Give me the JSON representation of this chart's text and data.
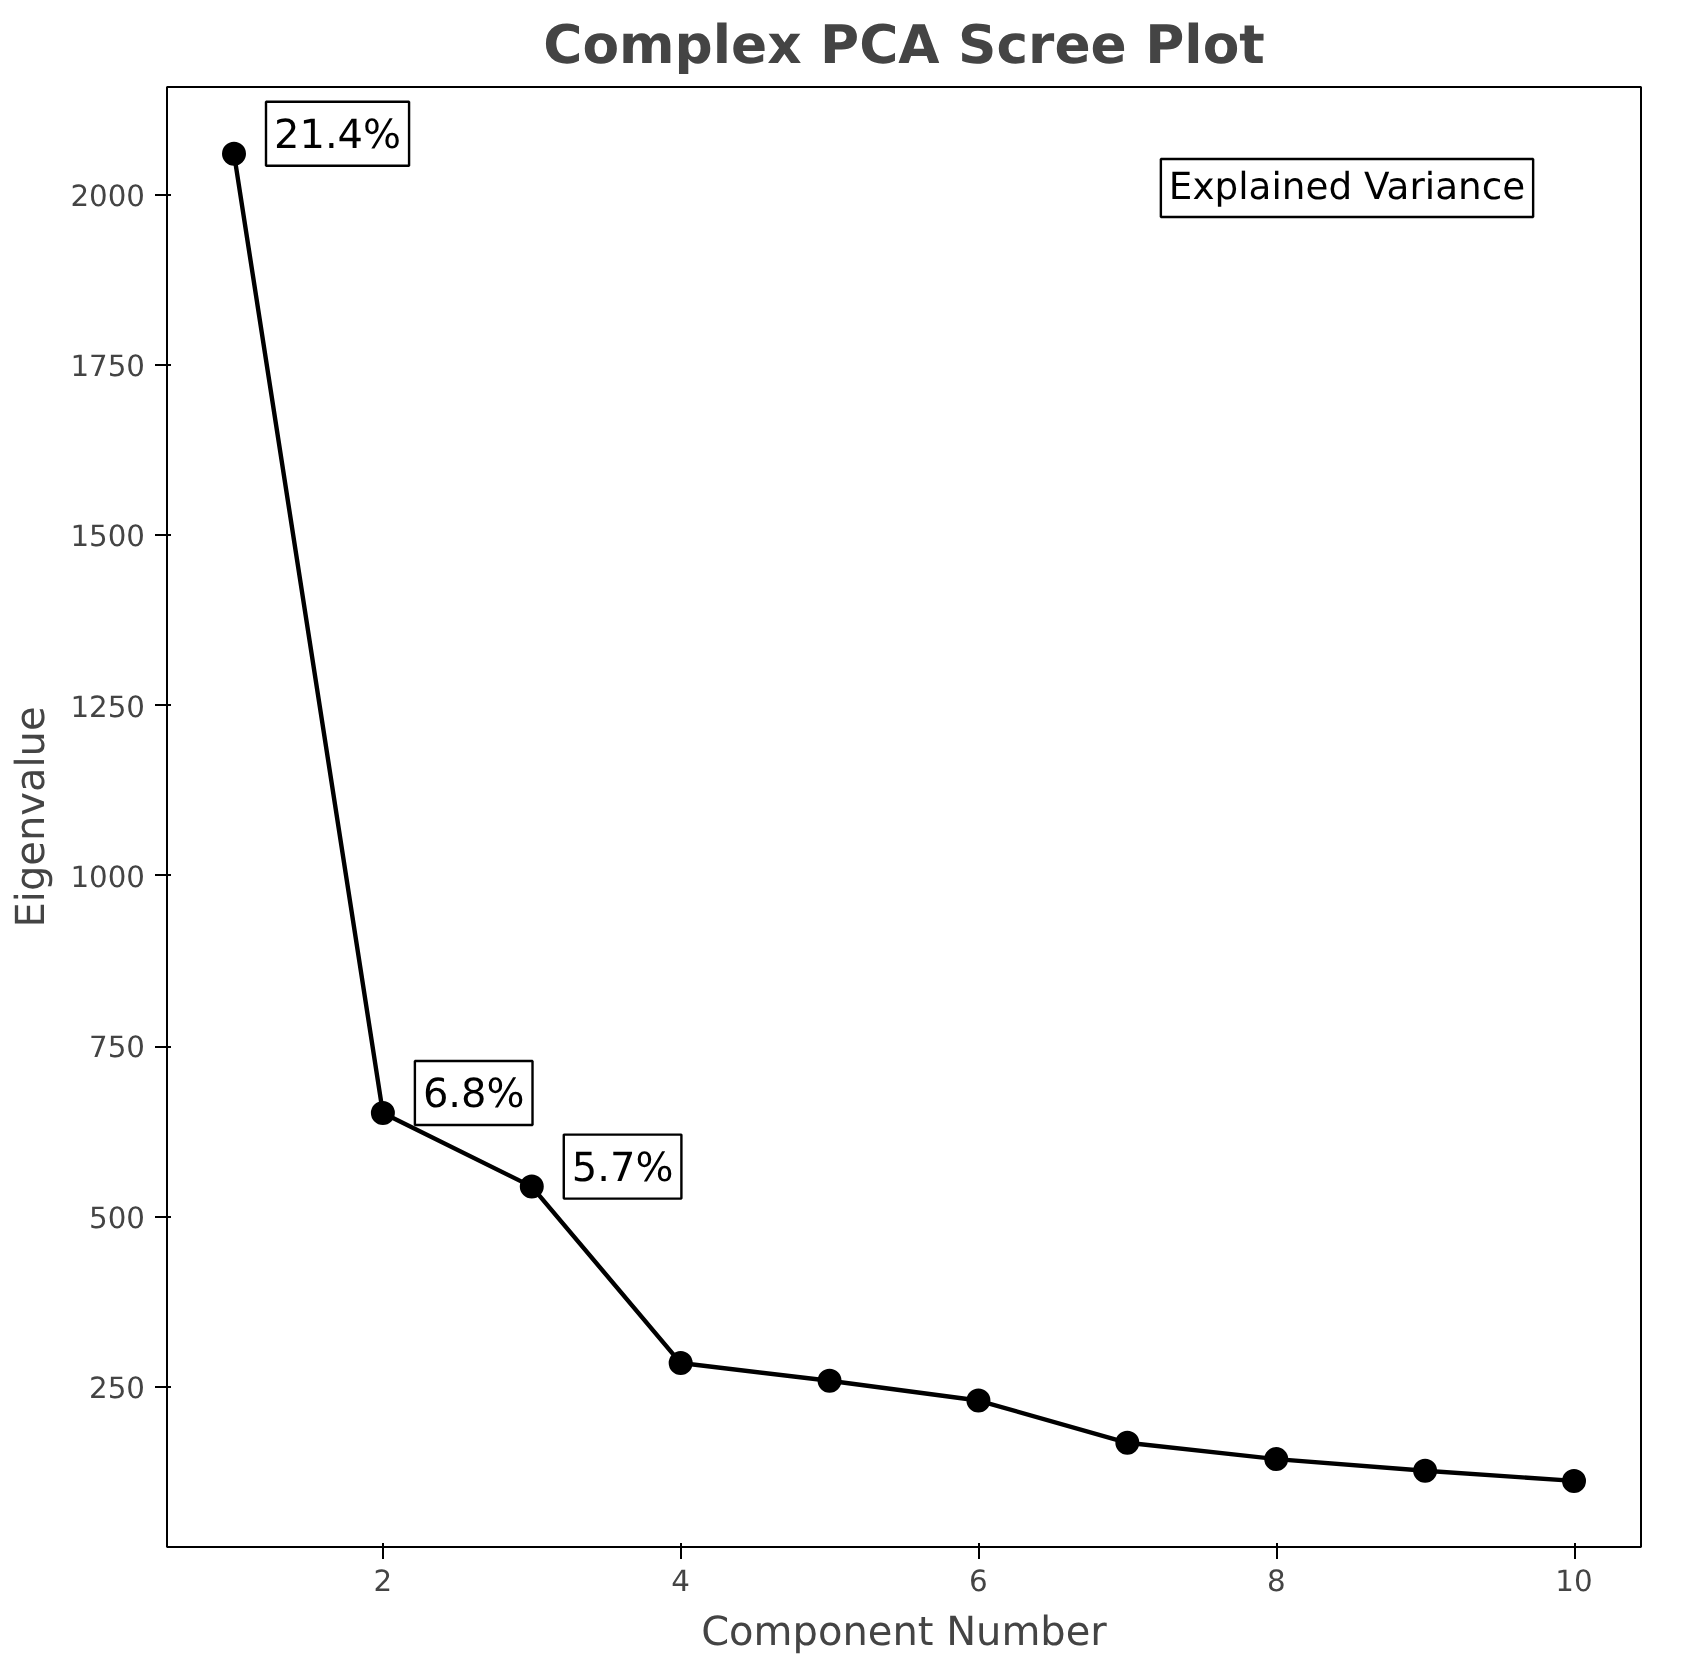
{
  "chart_data": {
    "type": "line",
    "title": "Complex PCA Scree Plot",
    "xlabel": "Component Number",
    "ylabel": "Eigenvalue",
    "x": [
      1,
      2,
      3,
      4,
      5,
      6,
      7,
      8,
      9,
      10
    ],
    "series": [
      {
        "color": "#000000",
        "values": [
          2060,
          652,
          544,
          285,
          259,
          230,
          168,
          144,
          127,
          112
        ]
      }
    ],
    "marker": "circle",
    "line_style": "solid",
    "grid": false,
    "xlim": [
      0.55,
      10.45
    ],
    "ylim": [
      15,
      2158
    ],
    "xticks": [
      2,
      4,
      6,
      8,
      10
    ],
    "yticks": [
      250,
      500,
      750,
      1000,
      1250,
      1500,
      1750,
      2000
    ],
    "annotations": [
      {
        "text": "21.4%",
        "x": 1,
        "y": 2060
      },
      {
        "text": "6.8%",
        "x": 2,
        "y": 652
      },
      {
        "text": "5.7%",
        "x": 3,
        "y": 544
      },
      "Explained Variance"
    ]
  }
}
